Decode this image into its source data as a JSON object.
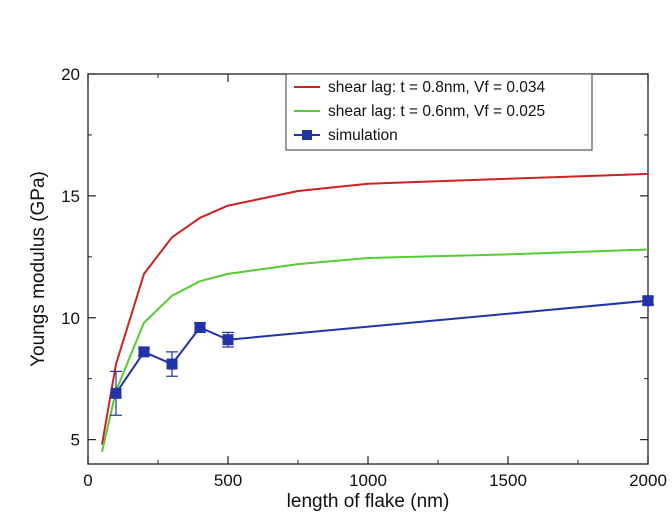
{
  "chart_data": {
    "type": "line",
    "title": "",
    "xlabel": "length of flake (nm)",
    "ylabel": "Youngs modulus (GPa)",
    "xlim": [
      0,
      2000
    ],
    "ylim": [
      4,
      20
    ],
    "x_ticks": [
      0,
      500,
      1000,
      1500,
      2000
    ],
    "y_ticks": [
      5,
      10,
      15,
      20
    ],
    "grid": false,
    "legend_position": "top-right",
    "series": [
      {
        "name": "shear lag: t = 0.8nm, Vf = 0.034",
        "color": "#cc2222",
        "marker": "none",
        "x": [
          50,
          100,
          200,
          300,
          400,
          500,
          750,
          1000,
          1500,
          2000
        ],
        "y": [
          4.8,
          8.1,
          11.8,
          13.3,
          14.1,
          14.6,
          15.2,
          15.5,
          15.7,
          15.9
        ]
      },
      {
        "name": "shear lag: t = 0.6nm, Vf = 0.025",
        "color": "#55cc33",
        "marker": "none",
        "x": [
          50,
          100,
          200,
          300,
          400,
          500,
          750,
          1000,
          1500,
          2000
        ],
        "y": [
          4.5,
          7.0,
          9.8,
          10.9,
          11.5,
          11.8,
          12.2,
          12.45,
          12.6,
          12.8
        ]
      },
      {
        "name": "simulation",
        "color": "#2233aa",
        "marker": "square",
        "x": [
          100,
          200,
          300,
          400,
          500,
          2000
        ],
        "y": [
          6.9,
          8.6,
          8.1,
          9.6,
          9.1,
          10.7
        ],
        "error": [
          0.9,
          0.15,
          0.5,
          0.2,
          0.3,
          0.15
        ]
      }
    ]
  }
}
